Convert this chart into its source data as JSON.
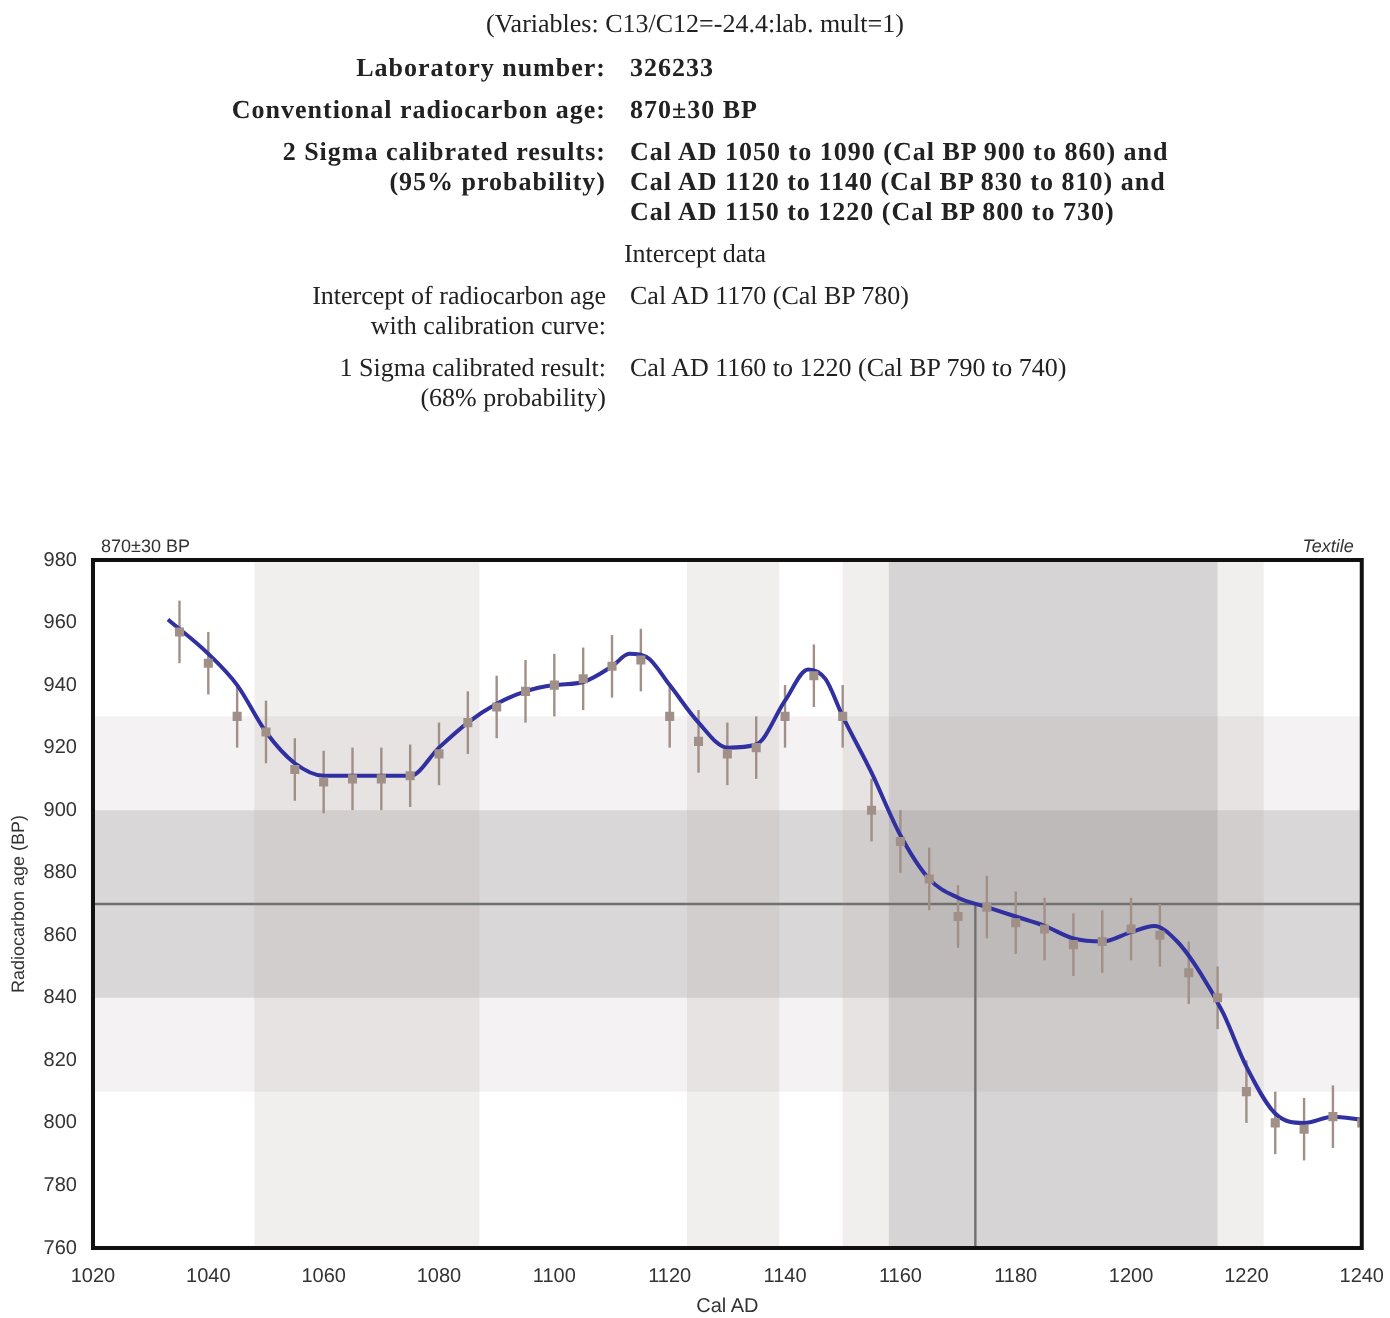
{
  "chart_data": {
    "type": "line",
    "subtitle": "(Variables:  C13/C12=-24.4:lab. mult=1)",
    "annotations": [
      "Laboratory number:",
      "326233",
      "Conventional radiocarbon age:",
      "870±30 BP",
      "2 Sigma calibrated results:\n(95% probability)",
      "Cal AD 1050 to 1090 (Cal BP 900 to 860) and\nCal AD 1120 to 1140 (Cal BP 830 to 810) and\nCal AD 1150 to 1220 (Cal BP 800 to 730)",
      "Intercept data",
      "Intercept of radiocarbon age\nwith calibration curve:",
      "Cal AD 1170 (Cal BP 780)",
      "1 Sigma calibrated result:\n(68% probability)",
      "Cal AD 1160 to 1220 (Cal BP 790 to 740)",
      "870±30 BP",
      "Textile"
    ],
    "xlabel": "Cal AD",
    "ylabel": "Radiocarbon age (BP)",
    "xlim": [
      1020,
      1240
    ],
    "xticks": [
      1020,
      1040,
      1060,
      1080,
      1100,
      1120,
      1140,
      1160,
      1180,
      1200,
      1220,
      1240
    ],
    "ylim": [
      760,
      980
    ],
    "yticks": [
      760,
      780,
      800,
      820,
      840,
      860,
      880,
      900,
      920,
      940,
      960,
      980
    ],
    "grid": false,
    "legend": false,
    "series": [
      {
        "type": "scatter",
        "color": "#a09088",
        "marker": "square",
        "x": [
          1035,
          1040,
          1045,
          1050,
          1055,
          1060,
          1065,
          1070,
          1075,
          1080,
          1085,
          1090,
          1095,
          1100,
          1105,
          1110,
          1115,
          1120,
          1125,
          1130,
          1135,
          1140,
          1145,
          1150,
          1155,
          1160,
          1165,
          1170,
          1175,
          1180,
          1185,
          1190,
          1195,
          1200,
          1205,
          1210,
          1215,
          1220,
          1225,
          1230,
          1235,
          1240
        ],
        "values": [
          957,
          947,
          930,
          925,
          913,
          909,
          910,
          910,
          911,
          918,
          928,
          933,
          938,
          940,
          942,
          946,
          948,
          930,
          922,
          918,
          920,
          930,
          943,
          930,
          900,
          890,
          878,
          866,
          869,
          864,
          862,
          857,
          858,
          862,
          860,
          848,
          840,
          810,
          800,
          798,
          802,
          800
        ],
        "errors": [
          10,
          10,
          10,
          10,
          10,
          10,
          10,
          10,
          10,
          10,
          10,
          10,
          10,
          10,
          10,
          10,
          10,
          10,
          10,
          10,
          10,
          10,
          10,
          10,
          10,
          10,
          10,
          10,
          10,
          10,
          10,
          10,
          10,
          10,
          10,
          10,
          10,
          10,
          10,
          10,
          10,
          10
        ]
      },
      {
        "color": "#3030a0",
        "marker": "none",
        "x": [
          1033,
          1040,
          1045,
          1050,
          1055,
          1060,
          1065,
          1070,
          1075,
          1080,
          1085,
          1090,
          1095,
          1100,
          1105,
          1110,
          1113,
          1116,
          1120,
          1125,
          1130,
          1135,
          1140,
          1144,
          1147,
          1150,
          1155,
          1160,
          1165,
          1170,
          1175,
          1180,
          1185,
          1190,
          1195,
          1200,
          1204,
          1208,
          1212,
          1216,
          1220,
          1225,
          1230,
          1235,
          1240
        ],
        "values": [
          961,
          950,
          940,
          925,
          915,
          911,
          911,
          911,
          911,
          920,
          928,
          934,
          938,
          940,
          941,
          946,
          950,
          949,
          940,
          928,
          920,
          921,
          935,
          945,
          942,
          930,
          912,
          892,
          878,
          872,
          869,
          866,
          863,
          859,
          858,
          861,
          863,
          858,
          848,
          835,
          818,
          803,
          800,
          802,
          801
        ]
      }
    ],
    "ref_lines": [
      {
        "axis": "y",
        "value": 870,
        "color": "#707070"
      },
      {
        "axis": "x",
        "value": 1173,
        "color": "#707070"
      }
    ],
    "bands": [
      {
        "axis": "y",
        "from": 810,
        "to": 930,
        "color": "#c8c0c0"
      },
      {
        "axis": "y",
        "from": 840,
        "to": 900,
        "color": "#6e6e6e"
      },
      {
        "axis": "x",
        "from": 1048,
        "to": 1087,
        "color": "#b8a8a8"
      },
      {
        "axis": "x",
        "from": 1123,
        "to": 1139,
        "color": "#b8a8a8"
      },
      {
        "axis": "x",
        "from": 1150,
        "to": 1223,
        "color": "#b8a8a8"
      },
      {
        "axis": "x",
        "from": 1158,
        "to": 1215,
        "color": "#6e6e6e"
      }
    ]
  }
}
